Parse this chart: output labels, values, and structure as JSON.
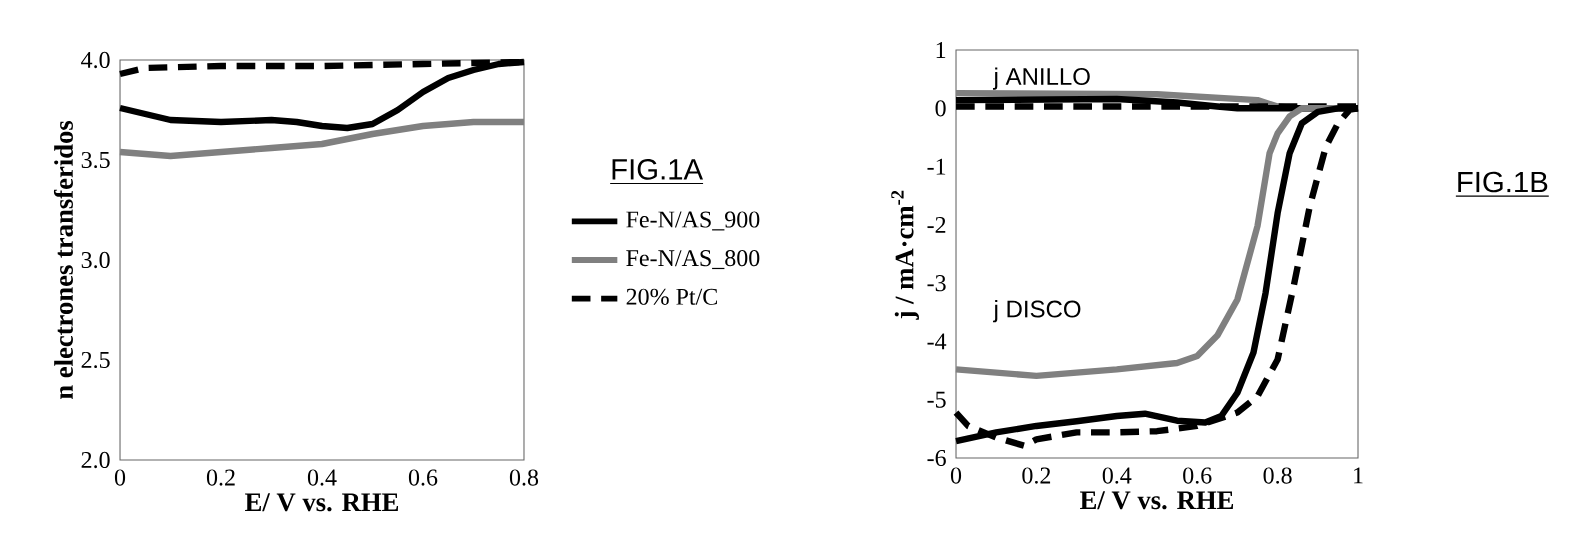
{
  "chart_data": [
    {
      "type": "line",
      "xlabel": "E/ V vs. RHE",
      "ylabel": "n electrones transferidos",
      "xlim": [
        0,
        0.8
      ],
      "ylim": [
        2,
        4
      ],
      "xticks": [
        0,
        0.2,
        0.4,
        0.6,
        0.8
      ],
      "yticks": [
        {
          "value": 2,
          "label": "2.0"
        },
        {
          "value": 2.5,
          "label": "2.5"
        },
        {
          "value": 3,
          "label": "3.0"
        },
        {
          "value": 3.5,
          "label": "3.5"
        },
        {
          "value": 4,
          "label": "4.0"
        }
      ],
      "legend": "right",
      "annotations": [
        "FIG.1A"
      ],
      "series": [
        {
          "name": "Fe-N/AS_900",
          "color": "#000000",
          "line_style": "solid",
          "x": [
            0,
            0.1,
            0.2,
            0.3,
            0.35,
            0.4,
            0.45,
            0.5,
            0.55,
            0.6,
            0.65,
            0.7,
            0.75,
            0.8
          ],
          "values": [
            3.76,
            3.7,
            3.69,
            3.7,
            3.69,
            3.67,
            3.66,
            3.68,
            3.75,
            3.84,
            3.91,
            3.95,
            3.98,
            3.99
          ]
        },
        {
          "name": "Fe-N/AS_800",
          "color": "#808080",
          "line_style": "solid",
          "x": [
            0,
            0.1,
            0.2,
            0.3,
            0.4,
            0.5,
            0.6,
            0.7,
            0.8
          ],
          "values": [
            3.54,
            3.52,
            3.54,
            3.56,
            3.58,
            3.63,
            3.67,
            3.69,
            3.69
          ]
        },
        {
          "name": "20% Pt/C",
          "color": "#000000",
          "line_style": "dashed",
          "x": [
            0,
            0.05,
            0.2,
            0.4,
            0.6,
            0.8
          ],
          "values": [
            3.93,
            3.96,
            3.97,
            3.97,
            3.98,
            3.99
          ]
        }
      ]
    },
    {
      "type": "line",
      "xlabel": "E/ V vs. RHE",
      "ylabel": "j / mA·cm$^{-2}$",
      "xlim": [
        0,
        1
      ],
      "ylim": [
        -6,
        1
      ],
      "xticks": [
        0,
        0.2,
        0.4,
        0.6,
        0.8,
        1
      ],
      "yticks": [
        -6,
        -5,
        -4,
        -3,
        -2,
        -1,
        0,
        1
      ],
      "annotations": [
        "FIG.1B",
        "j ANILLO",
        "j DISCO"
      ],
      "series": [
        {
          "color": "#808080",
          "line_style": "solid",
          "x": [
            0,
            0.5,
            0.75,
            0.8,
            0.85,
            1
          ],
          "values": [
            0.26,
            0.24,
            0.14,
            0.03,
            0,
            0
          ]
        },
        {
          "color": "#000000",
          "line_style": "solid",
          "x": [
            0,
            0.4,
            0.55,
            0.65,
            0.7,
            1
          ],
          "values": [
            0.14,
            0.16,
            0.1,
            0.03,
            0,
            0
          ]
        },
        {
          "color": "#000000",
          "line_style": "dashed",
          "x": [
            0,
            1
          ],
          "values": [
            0.03,
            0.03
          ]
        },
        {
          "color": "#808080",
          "line_style": "solid",
          "x": [
            0,
            0.2,
            0.4,
            0.55,
            0.6,
            0.65,
            0.7,
            0.75,
            0.78,
            0.8,
            0.83,
            0.86,
            0.9,
            1
          ],
          "values": [
            -4.48,
            -4.59,
            -4.48,
            -4.37,
            -4.25,
            -3.9,
            -3.28,
            -2.02,
            -0.77,
            -0.43,
            -0.14,
            0,
            0,
            0
          ]
        },
        {
          "color": "#000000",
          "line_style": "solid",
          "x": [
            0,
            0.1,
            0.2,
            0.3,
            0.4,
            0.47,
            0.55,
            0.62,
            0.66,
            0.7,
            0.74,
            0.77,
            0.8,
            0.83,
            0.86,
            0.9,
            0.95,
            1
          ],
          "values": [
            -5.71,
            -5.56,
            -5.45,
            -5.37,
            -5.28,
            -5.24,
            -5.36,
            -5.39,
            -5.28,
            -4.88,
            -4.19,
            -3.17,
            -1.8,
            -0.77,
            -0.26,
            -0.06,
            0,
            0
          ]
        },
        {
          "color": "#000000",
          "line_style": "dashed",
          "x": [
            0,
            0.03,
            0.1,
            0.17,
            0.2,
            0.3,
            0.4,
            0.5,
            0.6,
            0.7,
            0.75,
            0.8,
            0.84,
            0.88,
            0.92,
            0.95,
            0.98,
            1
          ],
          "values": [
            -5.22,
            -5.45,
            -5.65,
            -5.79,
            -5.68,
            -5.56,
            -5.56,
            -5.54,
            -5.45,
            -5.22,
            -4.94,
            -4.31,
            -3.05,
            -1.68,
            -0.66,
            -0.26,
            -0.02,
            0
          ]
        }
      ]
    }
  ]
}
